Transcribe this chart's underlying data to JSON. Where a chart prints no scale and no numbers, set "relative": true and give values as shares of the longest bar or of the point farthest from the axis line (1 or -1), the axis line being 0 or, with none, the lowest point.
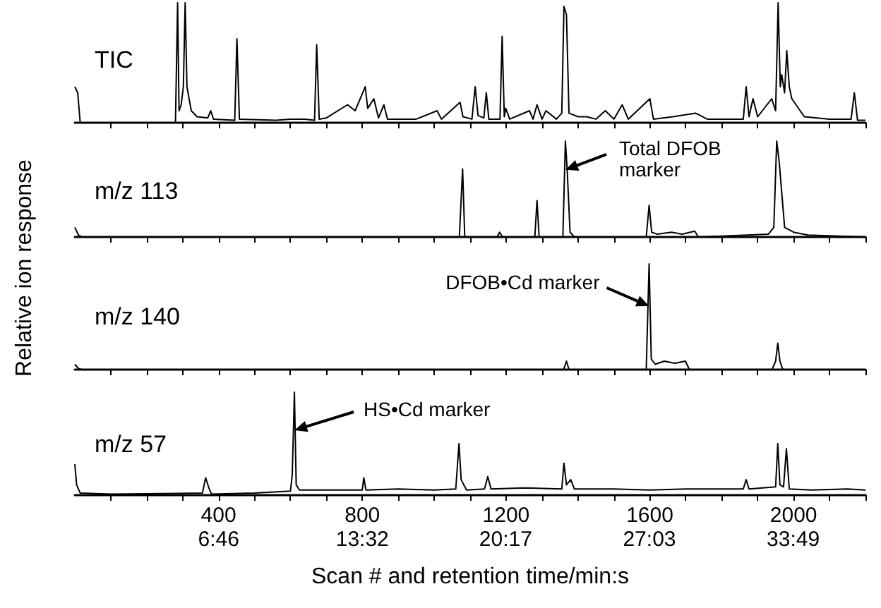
{
  "chart_data": [
    {
      "type": "line",
      "title": "TIC",
      "ylabel": "Relative ion response",
      "relative": true,
      "color": "#000000",
      "xlim": [
        0,
        2200
      ],
      "xticks": [
        {
          "value": 100,
          "label": null
        },
        {
          "value": 200,
          "label": null
        },
        {
          "value": 300,
          "label": null
        },
        400,
        {
          "value": 500,
          "label": null
        },
        {
          "value": 600,
          "label": null
        },
        {
          "value": 700,
          "label": null
        },
        800,
        {
          "value": 900,
          "label": null
        },
        {
          "value": 1000,
          "label": null
        },
        {
          "value": 1100,
          "label": null
        },
        1200,
        {
          "value": 1300,
          "label": null
        },
        {
          "value": 1400,
          "label": null
        },
        {
          "value": 1500,
          "label": null
        },
        1600,
        {
          "value": 1700,
          "label": null
        },
        {
          "value": 1800,
          "label": null
        },
        {
          "value": 1900,
          "label": null
        },
        2000,
        {
          "value": 2100,
          "label": null
        },
        {
          "value": 2200,
          "label": null
        }
      ],
      "tick_labels": false,
      "x": [
        0,
        8,
        15,
        280,
        286,
        290,
        296,
        302,
        307,
        312,
        324,
        340,
        370,
        378,
        386,
        445,
        451,
        458,
        560,
        600,
        640,
        667,
        673,
        680,
        700,
        759,
        780,
        808,
        815,
        832,
        845,
        860,
        870,
        950,
        1008,
        1020,
        1072,
        1080,
        1105,
        1114,
        1122,
        1138,
        1145,
        1152,
        1183,
        1189,
        1195,
        1199,
        1210,
        1265,
        1275,
        1286,
        1300,
        1311,
        1340,
        1355,
        1361,
        1368,
        1375,
        1400,
        1424,
        1450,
        1476,
        1500,
        1523,
        1540,
        1600,
        1610,
        1664,
        1727,
        1760,
        1860,
        1868,
        1876,
        1887,
        1900,
        1939,
        1950,
        1957,
        1963,
        1967,
        1975,
        1981,
        1988,
        1995,
        2030,
        2100,
        2160,
        2169,
        2178,
        2200
      ],
      "values": [
        0.3,
        0.25,
        0,
        0,
        1.0,
        0.1,
        0.15,
        0.3,
        1.0,
        0.3,
        0.1,
        0.05,
        0.04,
        0.1,
        0.03,
        0.02,
        0.7,
        0.03,
        0.02,
        0.03,
        0.03,
        0.02,
        0.65,
        0.03,
        0.04,
        0.15,
        0.1,
        0.3,
        0.12,
        0.2,
        0.04,
        0.15,
        0.03,
        0.03,
        0.1,
        0.03,
        0.17,
        0.05,
        0.03,
        0.3,
        0.06,
        0.04,
        0.25,
        0.03,
        0.03,
        0.72,
        0.05,
        0.12,
        0.03,
        0.1,
        0.03,
        0.15,
        0.03,
        0.1,
        0.03,
        0.08,
        0.97,
        0.9,
        0.08,
        0.05,
        0.05,
        0.03,
        0.1,
        0.03,
        0.15,
        0.03,
        0.2,
        0.03,
        0.05,
        0.08,
        0.03,
        0.03,
        0.3,
        0.05,
        0.2,
        0.05,
        0.2,
        0.1,
        1.0,
        0.3,
        0.4,
        0.25,
        0.6,
        0.3,
        0.2,
        0.05,
        0.03,
        0.03,
        0.25,
        0.02,
        0.02
      ]
    },
    {
      "type": "line",
      "title": "m/z 113",
      "relative": true,
      "color": "#000000",
      "xlim": [
        0,
        2200
      ],
      "xticks": [
        {
          "value": 100,
          "label": null
        },
        {
          "value": 200,
          "label": null
        },
        {
          "value": 300,
          "label": null
        },
        400,
        {
          "value": 500,
          "label": null
        },
        {
          "value": 600,
          "label": null
        },
        {
          "value": 700,
          "label": null
        },
        800,
        {
          "value": 900,
          "label": null
        },
        {
          "value": 1000,
          "label": null
        },
        {
          "value": 1100,
          "label": null
        },
        1200,
        {
          "value": 1300,
          "label": null
        },
        {
          "value": 1400,
          "label": null
        },
        {
          "value": 1500,
          "label": null
        },
        1600,
        {
          "value": 1700,
          "label": null
        },
        {
          "value": 1800,
          "label": null
        },
        {
          "value": 1900,
          "label": null
        },
        2000,
        {
          "value": 2100,
          "label": null
        },
        {
          "value": 2200,
          "label": null
        }
      ],
      "tick_labels": false,
      "annotations": [
        {
          "text": "Total DFOB\nmarker",
          "x": 1365,
          "y": 0.7
        }
      ],
      "x": [
        0,
        10,
        20,
        1070,
        1079,
        1085,
        1175,
        1182,
        1190,
        1280,
        1286,
        1292,
        1358,
        1365,
        1370,
        1378,
        1390,
        1590,
        1598,
        1605,
        1620,
        1660,
        1690,
        1725,
        1735,
        1930,
        1945,
        1953,
        1960,
        1975,
        2000,
        2040,
        2200
      ],
      "values": [
        0.1,
        0.02,
        0,
        0,
        0.71,
        0,
        0,
        0.05,
        0,
        0,
        0.38,
        0,
        0,
        1.0,
        0.7,
        0.05,
        0,
        0,
        0.33,
        0.05,
        0.03,
        0.05,
        0.03,
        0.06,
        0,
        0.03,
        0.1,
        1.0,
        0.78,
        0.1,
        0.05,
        0.02,
        0
      ]
    },
    {
      "type": "line",
      "title": "m/z 140",
      "relative": true,
      "color": "#000000",
      "xlim": [
        0,
        2200
      ],
      "xticks": [
        {
          "value": 100,
          "label": null
        },
        {
          "value": 200,
          "label": null
        },
        {
          "value": 300,
          "label": null
        },
        400,
        {
          "value": 500,
          "label": null
        },
        {
          "value": 600,
          "label": null
        },
        {
          "value": 700,
          "label": null
        },
        800,
        {
          "value": 900,
          "label": null
        },
        {
          "value": 1000,
          "label": null
        },
        {
          "value": 1100,
          "label": null
        },
        1200,
        {
          "value": 1300,
          "label": null
        },
        {
          "value": 1400,
          "label": null
        },
        {
          "value": 1500,
          "label": null
        },
        1600,
        {
          "value": 1700,
          "label": null
        },
        {
          "value": 1800,
          "label": null
        },
        {
          "value": 1900,
          "label": null
        },
        2000,
        {
          "value": 2100,
          "label": null
        },
        {
          "value": 2200,
          "label": null
        }
      ],
      "tick_labels": false,
      "annotations": [
        {
          "text": "DFOB•Cd marker",
          "x": 1598,
          "y": 0.6
        }
      ],
      "x": [
        0,
        10,
        20,
        1360,
        1368,
        1375,
        1590,
        1598,
        1604,
        1615,
        1640,
        1670,
        1699,
        1710,
        1940,
        1950,
        1956,
        1962,
        1970,
        2200
      ],
      "values": [
        0.05,
        0.01,
        0,
        0,
        0.08,
        0,
        0,
        1.0,
        0.1,
        0.05,
        0.08,
        0.06,
        0.08,
        0,
        0,
        0.08,
        0.25,
        0.08,
        0,
        0
      ]
    },
    {
      "type": "line",
      "title": "m/z 57",
      "xlabel": "Scan # and retention time/min:s",
      "relative": true,
      "color": "#000000",
      "xlim": [
        0,
        2200
      ],
      "xticks": [
        {
          "value": 100,
          "label": null
        },
        {
          "value": 200,
          "label": null
        },
        {
          "value": 300,
          "label": null
        },
        400,
        {
          "value": 500,
          "label": null
        },
        {
          "value": 600,
          "label": null
        },
        {
          "value": 700,
          "label": null
        },
        800,
        {
          "value": 900,
          "label": null
        },
        {
          "value": 1000,
          "label": null
        },
        {
          "value": 1100,
          "label": null
        },
        1200,
        {
          "value": 1300,
          "label": null
        },
        {
          "value": 1400,
          "label": null
        },
        {
          "value": 1500,
          "label": null
        },
        1600,
        {
          "value": 1700,
          "label": null
        },
        {
          "value": 1800,
          "label": null
        },
        {
          "value": 1900,
          "label": null
        },
        2000,
        {
          "value": 2100,
          "label": null
        },
        {
          "value": 2200,
          "label": null
        }
      ],
      "tick_labels": "x",
      "x2lim": [
        0,
        37.22
      ],
      "x2ticks": [
        {
          "value": 6.767,
          "label": "6:46"
        },
        {
          "value": 13.533,
          "label": "13:32"
        },
        {
          "value": 20.283,
          "label": "20:17"
        },
        {
          "value": 27.05,
          "label": "27:03"
        },
        {
          "value": 33.817,
          "label": "33:49"
        }
      ],
      "annotations": [
        {
          "text": "HS•Cd marker",
          "x": 611,
          "y": 0.63
        }
      ],
      "x": [
        0,
        5,
        15,
        100,
        355,
        364,
        372,
        380,
        500,
        600,
        605,
        611,
        616,
        625,
        700,
        800,
        804,
        810,
        900,
        1000,
        1060,
        1069,
        1075,
        1090,
        1140,
        1149,
        1158,
        1250,
        1355,
        1361,
        1368,
        1380,
        1390,
        1500,
        1600,
        1700,
        1860,
        1868,
        1876,
        1950,
        1956,
        1962,
        1972,
        1980,
        1988,
        2050,
        2150,
        2200
      ],
      "values": [
        0.3,
        0.1,
        0.02,
        0.01,
        0.02,
        0.17,
        0.08,
        0.01,
        0.02,
        0.04,
        0.2,
        1.0,
        0.1,
        0.05,
        0.05,
        0.05,
        0.17,
        0.05,
        0.06,
        0.05,
        0.06,
        0.5,
        0.15,
        0.05,
        0.06,
        0.18,
        0.06,
        0.07,
        0.06,
        0.31,
        0.1,
        0.15,
        0.06,
        0.06,
        0.05,
        0.06,
        0.06,
        0.15,
        0.06,
        0.08,
        0.5,
        0.1,
        0.08,
        0.45,
        0.06,
        0.05,
        0.06,
        0.05
      ]
    }
  ]
}
